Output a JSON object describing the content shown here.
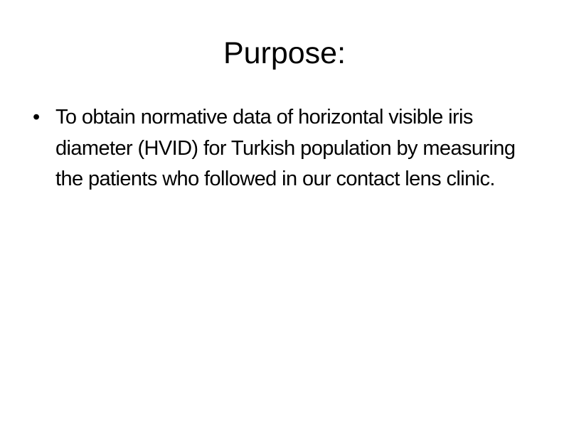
{
  "slide": {
    "title": "Purpose:",
    "bullets": [
      {
        "marker": "•",
        "text": "To obtain normative data of horizontal visible iris diameter (HVID) for Turkish population by measuring the patients who followed in our contact lens clinic."
      }
    ]
  }
}
